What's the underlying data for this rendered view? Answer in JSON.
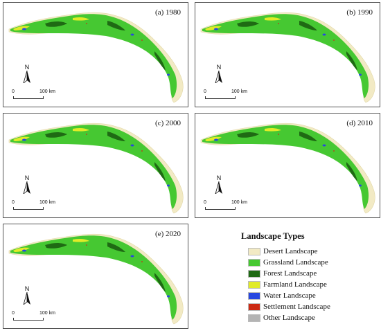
{
  "panels": [
    {
      "label": "(a) 1980"
    },
    {
      "label": "(b) 1990"
    },
    {
      "label": "(c) 2000"
    },
    {
      "label": "(d) 2010"
    },
    {
      "label": "(e) 2020"
    }
  ],
  "north_label": "N",
  "scale": {
    "zero": "0",
    "distance": "100 km"
  },
  "legend": {
    "title": "Landscape Types",
    "items": [
      {
        "label": "Desert Landscape",
        "color": "#f2eac4"
      },
      {
        "label": "Grassland Landscape",
        "color": "#46c832"
      },
      {
        "label": "Forest Landscape",
        "color": "#1f6a14"
      },
      {
        "label": "Farmland Landscape",
        "color": "#e1eb28"
      },
      {
        "label": "Water Landscape",
        "color": "#2848e0"
      },
      {
        "label": "Settlement Landscape",
        "color": "#cc2a14"
      },
      {
        "label": "Other Landscape",
        "color": "#b4b4b4"
      }
    ]
  }
}
